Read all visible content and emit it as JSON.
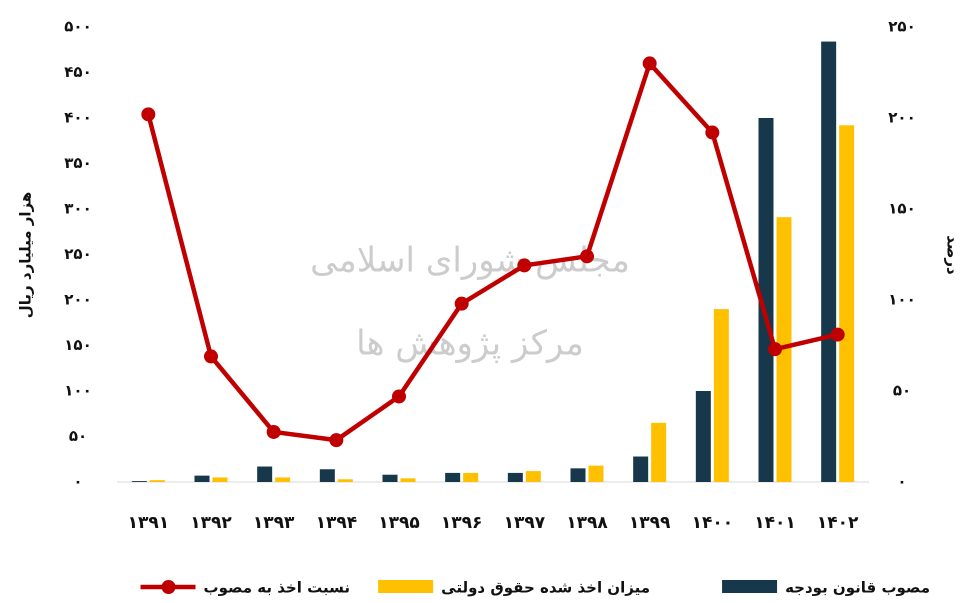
{
  "chart_data": {
    "type": "bar",
    "y_label": "هزار میلیارد ریال",
    "y2_label": "درصد",
    "watermark": [
      "مجلس شورای اسلامی",
      "مرکز پژوهش ها"
    ],
    "categories": [
      "۱۳۹۱",
      "۱۳۹۲",
      "۱۳۹۳",
      "۱۳۹۴",
      "۱۳۹۵",
      "۱۳۹۶",
      "۱۳۹۷",
      "۱۳۹۸",
      "۱۳۹۹",
      "۱۴۰۰",
      "۱۴۰۱",
      "۱۴۰۲"
    ],
    "series": [
      {
        "name": "مصوب قانون بودجه",
        "color": "#17374a",
        "values": [
          1,
          7,
          17,
          14,
          8,
          10,
          10,
          15,
          28,
          100,
          400,
          484
        ]
      },
      {
        "name": "میزان اخذ شده حقوق دولتی",
        "color": "#ffc000",
        "values": [
          2,
          5,
          5,
          3,
          4,
          10,
          12,
          18,
          65,
          190,
          291,
          392
        ]
      },
      {
        "name": "نسبت اخذ به مصوب",
        "color": "#c00000",
        "type": "line",
        "axis": "y2",
        "values": [
          202,
          69,
          27.5,
          23,
          47,
          98,
          119,
          124,
          230,
          192,
          73,
          81
        ]
      }
    ],
    "ylim": [
      0,
      500
    ],
    "yticks": [
      {
        "value": 0,
        "label": "۰"
      },
      {
        "value": 50,
        "label": "۵۰"
      },
      {
        "value": 100,
        "label": "۱۰۰"
      },
      {
        "value": 150,
        "label": "۱۵۰"
      },
      {
        "value": 200,
        "label": "۲۰۰"
      },
      {
        "value": 250,
        "label": "۲۵۰"
      },
      {
        "value": 300,
        "label": "۳۰۰"
      },
      {
        "value": 350,
        "label": "۳۵۰"
      },
      {
        "value": 400,
        "label": "۴۰۰"
      },
      {
        "value": 450,
        "label": "۴۵۰"
      },
      {
        "value": 500,
        "label": "۵۰۰"
      }
    ],
    "y2lim": [
      0,
      250
    ],
    "y2ticks": [
      {
        "value": 0,
        "label": "۰"
      },
      {
        "value": 50,
        "label": "۵۰"
      },
      {
        "value": 100,
        "label": "۱۰۰"
      },
      {
        "value": 150,
        "label": "۱۵۰"
      },
      {
        "value": 200,
        "label": "۲۰۰"
      },
      {
        "value": 250,
        "label": "۲۵۰"
      }
    ]
  }
}
